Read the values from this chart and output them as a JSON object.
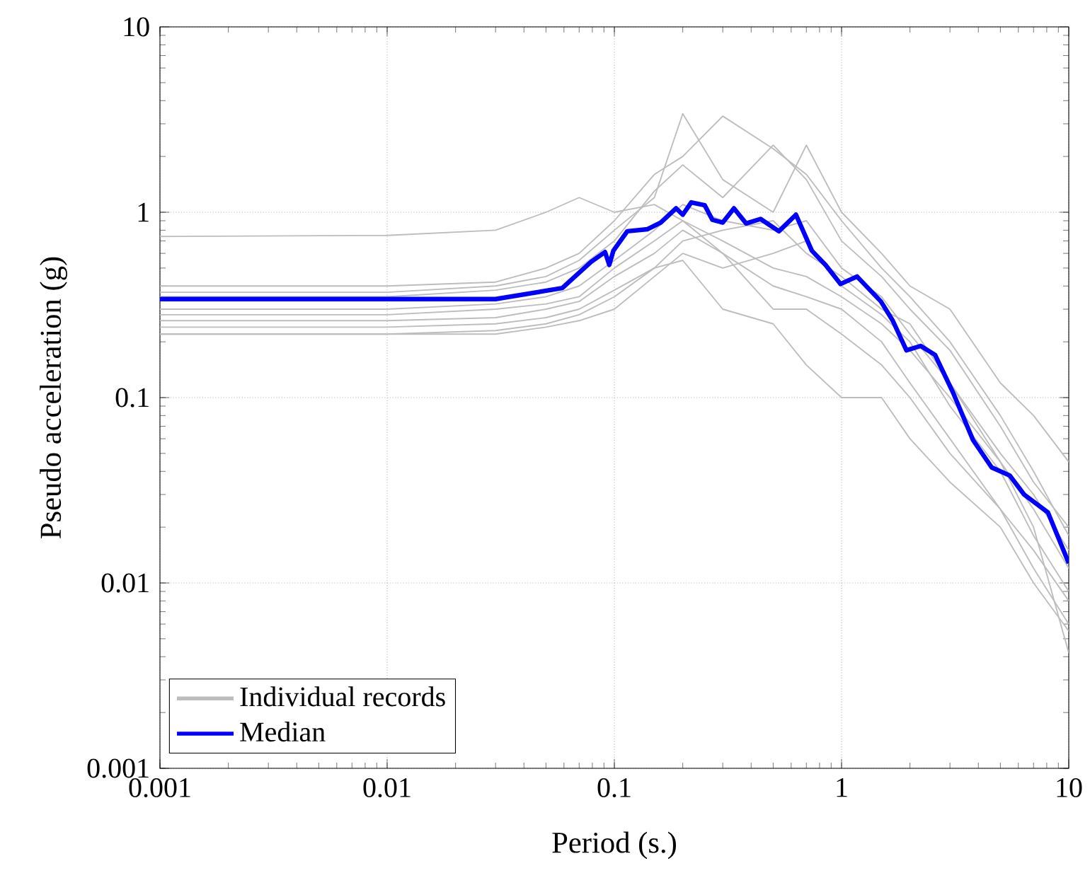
{
  "chart_data": {
    "type": "line",
    "xlabel": "Period (s.)",
    "ylabel": "Pseudo acceleration (g)",
    "log": "xy",
    "grid": true,
    "legend": "bottom left",
    "line_style": "solid",
    "xlim": [
      0.001,
      10
    ],
    "ylim": [
      0.001,
      10
    ],
    "xticks": [
      0.001,
      0.01,
      0.1,
      1,
      10
    ],
    "yticks": [
      0.001,
      0.01,
      0.1,
      1,
      10
    ],
    "x": [
      0.001,
      0.01,
      0.03,
      0.05,
      0.07,
      0.1,
      0.15,
      0.2,
      0.3,
      0.5,
      0.7,
      1,
      1.5,
      2,
      3,
      5,
      7,
      10
    ],
    "series": [
      {
        "name": "Individual records",
        "color": "#bdbdbd",
        "values": [
          0.74,
          0.75,
          0.8,
          1.0,
          1.2,
          1.0,
          1.1,
          0.9,
          0.6,
          0.4,
          0.35,
          0.3,
          0.2,
          0.12,
          0.06,
          0.025,
          0.012,
          0.006
        ]
      },
      {
        "color": "#bdbdbd",
        "values": [
          0.4,
          0.4,
          0.42,
          0.5,
          0.6,
          0.9,
          1.6,
          2.0,
          3.3,
          2.2,
          1.6,
          0.9,
          0.5,
          0.35,
          0.2,
          0.08,
          0.04,
          0.018
        ]
      },
      {
        "color": "#bdbdbd",
        "values": [
          0.37,
          0.37,
          0.4,
          0.45,
          0.55,
          0.8,
          1.2,
          3.4,
          1.5,
          1.0,
          2.3,
          1.0,
          0.6,
          0.4,
          0.3,
          0.12,
          0.08,
          0.045
        ]
      },
      {
        "color": "#bdbdbd",
        "values": [
          0.35,
          0.35,
          0.38,
          0.42,
          0.5,
          0.7,
          1.3,
          1.8,
          1.2,
          2.3,
          1.5,
          0.7,
          0.45,
          0.3,
          0.18,
          0.07,
          0.035,
          0.02
        ]
      },
      {
        "color": "#bdbdbd",
        "values": [
          0.3,
          0.3,
          0.32,
          0.35,
          0.4,
          0.55,
          0.8,
          1.1,
          0.9,
          0.8,
          0.9,
          0.5,
          0.35,
          0.22,
          0.12,
          0.05,
          0.03,
          0.015
        ]
      },
      {
        "color": "#bdbdbd",
        "values": [
          0.28,
          0.28,
          0.3,
          0.32,
          0.35,
          0.5,
          0.7,
          0.9,
          0.7,
          0.5,
          0.45,
          0.35,
          0.25,
          0.18,
          0.1,
          0.045,
          0.025,
          0.012
        ]
      },
      {
        "color": "#bdbdbd",
        "values": [
          0.26,
          0.26,
          0.27,
          0.3,
          0.33,
          0.45,
          0.6,
          0.8,
          0.6,
          0.3,
          0.3,
          0.22,
          0.15,
          0.1,
          0.05,
          0.025,
          0.015,
          0.008
        ]
      },
      {
        "color": "#bdbdbd",
        "values": [
          0.24,
          0.24,
          0.25,
          0.27,
          0.3,
          0.38,
          0.5,
          0.55,
          0.3,
          0.25,
          0.15,
          0.1,
          0.1,
          0.06,
          0.035,
          0.02,
          0.01,
          0.0055
        ]
      },
      {
        "color": "#bdbdbd",
        "values": [
          0.22,
          0.22,
          0.23,
          0.25,
          0.28,
          0.35,
          0.5,
          0.7,
          0.8,
          0.9,
          0.6,
          0.45,
          0.3,
          0.25,
          0.12,
          0.045,
          0.02,
          0.0042
        ]
      },
      {
        "color": "#bdbdbd",
        "values": [
          0.22,
          0.22,
          0.22,
          0.24,
          0.26,
          0.3,
          0.45,
          0.6,
          0.5,
          0.6,
          0.7,
          0.4,
          0.28,
          0.2,
          0.09,
          0.04,
          0.018,
          0.009
        ]
      },
      {
        "name": "Median",
        "color": "#0000ff",
        "x": [
          0.001,
          0.03,
          0.059,
          0.079,
          0.091,
          0.095,
          0.099,
          0.114,
          0.14,
          0.16,
          0.187,
          0.2,
          0.218,
          0.25,
          0.27,
          0.3,
          0.336,
          0.38,
          0.44,
          0.53,
          0.63,
          0.74,
          0.85,
          0.99,
          1.17,
          1.49,
          1.68,
          1.93,
          2.23,
          2.58,
          3.1,
          3.79,
          4.58,
          5.5,
          6.36,
          8.1,
          10
        ],
        "values": [
          0.34,
          0.34,
          0.39,
          0.54,
          0.61,
          0.52,
          0.62,
          0.79,
          0.81,
          0.88,
          1.05,
          0.97,
          1.13,
          1.09,
          0.91,
          0.88,
          1.05,
          0.87,
          0.92,
          0.79,
          0.97,
          0.62,
          0.52,
          0.41,
          0.45,
          0.33,
          0.26,
          0.18,
          0.19,
          0.17,
          0.106,
          0.059,
          0.042,
          0.038,
          0.03,
          0.024,
          0.0128
        ]
      }
    ]
  }
}
